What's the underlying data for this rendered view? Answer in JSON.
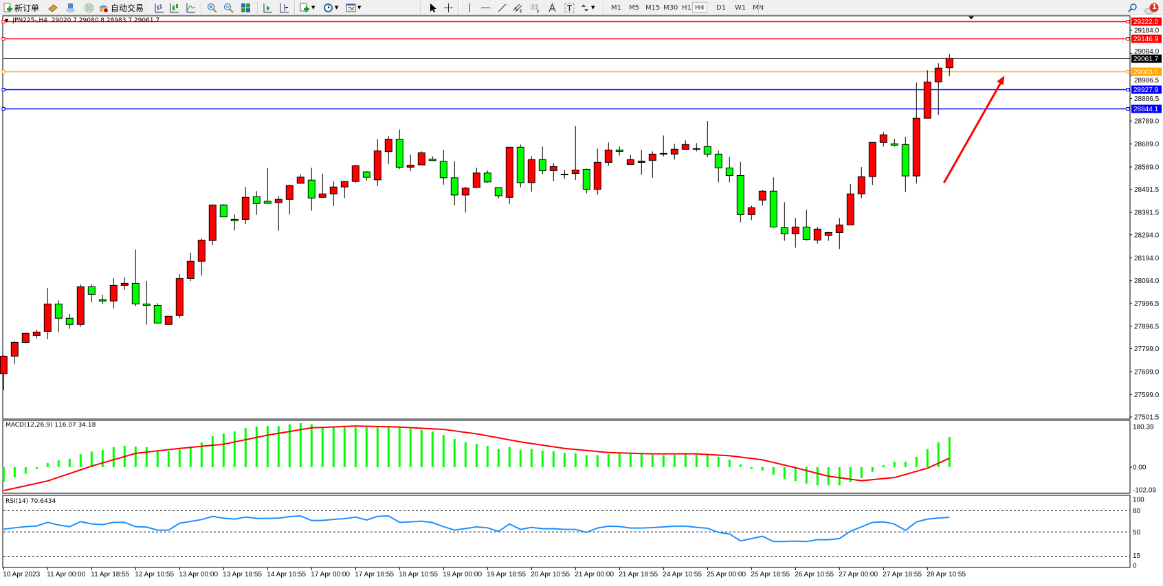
{
  "toolbar": {
    "new_order": "新订单",
    "auto_trading": "自动交易",
    "timeframes": [
      "M1",
      "M5",
      "M15",
      "M30",
      "H1",
      "H4",
      "D1",
      "W1",
      "MN"
    ],
    "active_timeframe": "H4",
    "notification_count": "1",
    "icons": [
      "new-order-icon",
      "market-watch-icon",
      "cloud-icon",
      "signal-icon",
      "auto-trading-icon",
      "bar-chart-icon",
      "candlestick-icon",
      "line-chart-icon",
      "zoom-in-icon",
      "zoom-out-icon",
      "tile-windows-icon",
      "chart-shift-icon",
      "autoscroll-icon",
      "indicators-icon",
      "periods-clock-icon",
      "templates-icon",
      "cursor-icon",
      "crosshair-icon",
      "vertical-line-icon",
      "horizontal-line-icon",
      "trendline-icon",
      "equidistant-channel-icon",
      "fibonacci-icon",
      "text-icon",
      "text-label-icon",
      "arrows-icon",
      "search-icon",
      "notification-icon"
    ]
  },
  "chart": {
    "header": "JPN225-,H4  29020.7 29080.8 28983.7 29061.7",
    "symbol": "JPN225-",
    "period": "H4",
    "colors": {
      "bull": "#ff0000",
      "bear": "#00ff00",
      "outline": "#000000",
      "macd_hist": "#00ff00",
      "signal": "#ff0000",
      "rsi": "#1e90ff"
    },
    "price_ticks": [
      "29184.0",
      "29084.0",
      "28986.5",
      "28886.5",
      "28789.0",
      "28689.0",
      "28589.0",
      "28491.5",
      "28391.5",
      "28294.0",
      "28194.0",
      "28094.0",
      "27996.5",
      "27896.5",
      "27799.0",
      "27699.0",
      "27599.0",
      "27501.5"
    ],
    "levels": [
      {
        "price": "29222.0",
        "color": "#ff0000"
      },
      {
        "price": "29146.9",
        "color": "#ff0000"
      },
      {
        "price": "29061.7",
        "color": "#000000"
      },
      {
        "price": "29003.6",
        "color": "#ffa500"
      },
      {
        "price": "28927.9",
        "color": "#0000ff"
      },
      {
        "price": "28844.1",
        "color": "#0000ff"
      }
    ],
    "arrow": {
      "color": "#ff0000",
      "from_bar": 85.5,
      "from_price": 28520,
      "to_bar": 91,
      "to_price": 28986.5
    },
    "time_labels": [
      "10 Apr 2023",
      "11 Apr 00:00",
      "11 Apr 18:55",
      "12 Apr 10:55",
      "13 Apr 00:00",
      "13 Apr 18:55",
      "14 Apr 10:55",
      "17 Apr 00:00",
      "17 Apr 18:55",
      "18 Apr 10:55",
      "19 Apr 00:00",
      "19 Apr 18:55",
      "20 Apr 10:55",
      "21 Apr 00:00",
      "21 Apr 18:55",
      "24 Apr 10:55",
      "25 Apr 00:00",
      "25 Apr 18:55",
      "26 Apr 10:55",
      "27 Apr 00:00",
      "27 Apr 18:55",
      "28 Apr 10:55"
    ]
  },
  "chart_data": {
    "type": "candlestick",
    "ohlc_fields": [
      "open",
      "high",
      "low",
      "close"
    ],
    "ylim": [
      27501.5,
      29222.0
    ],
    "candles": [
      [
        27690,
        27770,
        27618,
        27766
      ],
      [
        27766,
        27831,
        27731,
        27826
      ],
      [
        27826,
        27868,
        27822,
        27865
      ],
      [
        27856,
        27881,
        27843,
        27871
      ],
      [
        27874,
        28063,
        27840,
        27993
      ],
      [
        27993,
        28009,
        27870,
        27931
      ],
      [
        27931,
        27950,
        27885,
        27904
      ],
      [
        27904,
        28078,
        27894,
        28068
      ],
      [
        28068,
        28078,
        28000,
        28035
      ],
      [
        28012,
        28033,
        27992,
        28006
      ],
      [
        28006,
        28105,
        27974,
        28074
      ],
      [
        28074,
        28110,
        28055,
        28083
      ],
      [
        28083,
        28230,
        27983,
        27993
      ],
      [
        27993,
        28093,
        27903,
        27987
      ],
      [
        27987,
        27996,
        27910,
        27910
      ],
      [
        27904,
        27940,
        27904,
        27940
      ],
      [
        27943,
        28123,
        27932,
        28104
      ],
      [
        28104,
        28216,
        28093,
        28179
      ],
      [
        28179,
        28278,
        28116,
        28271
      ],
      [
        28269,
        28424,
        28248,
        28424
      ],
      [
        28424,
        28427,
        28372,
        28372
      ],
      [
        28361,
        28383,
        28313,
        28355
      ],
      [
        28361,
        28502,
        28341,
        28457
      ],
      [
        28460,
        28484,
        28381,
        28430
      ],
      [
        28440,
        28585,
        28428,
        28431
      ],
      [
        28434,
        28463,
        28312,
        28448
      ],
      [
        28448,
        28512,
        28382,
        28509
      ],
      [
        28518,
        28557,
        28518,
        28545
      ],
      [
        28532,
        28586,
        28399,
        28454
      ],
      [
        28457,
        28560,
        28454,
        28472
      ],
      [
        28472,
        28526,
        28419,
        28502
      ],
      [
        28502,
        28528,
        28454,
        28526
      ],
      [
        28526,
        28598,
        28521,
        28595
      ],
      [
        28568,
        28571,
        28530,
        28544
      ],
      [
        28533,
        28710,
        28506,
        28659
      ],
      [
        28656,
        28723,
        28601,
        28710
      ],
      [
        28710,
        28752,
        28580,
        28588
      ],
      [
        28588,
        28643,
        28571,
        28597
      ],
      [
        28598,
        28657,
        28598,
        28651
      ],
      [
        28623,
        28636,
        28617,
        28617
      ],
      [
        28614,
        28664,
        28512,
        28542
      ],
      [
        28542,
        28614,
        28422,
        28467
      ],
      [
        28467,
        28503,
        28391,
        28497
      ],
      [
        28500,
        28586,
        28497,
        28563
      ],
      [
        28563,
        28574,
        28521,
        28524
      ],
      [
        28500,
        28500,
        28452,
        28464
      ],
      [
        28457,
        28675,
        28429,
        28675
      ],
      [
        28675,
        28687,
        28500,
        28521
      ],
      [
        28521,
        28636,
        28482,
        28621
      ],
      [
        28621,
        28678,
        28558,
        28573
      ],
      [
        28573,
        28606,
        28527,
        28591
      ],
      [
        28555,
        28576,
        28537,
        28558
      ],
      [
        28561,
        28767,
        28533,
        28576
      ],
      [
        28579,
        28582,
        28474,
        28492
      ],
      [
        28492,
        28669,
        28468,
        28609
      ],
      [
        28609,
        28696,
        28594,
        28663
      ],
      [
        28663,
        28678,
        28639,
        28657
      ],
      [
        28600,
        28642,
        28600,
        28621
      ],
      [
        28609,
        28664,
        28555,
        28615
      ],
      [
        28618,
        28657,
        28542,
        28645
      ],
      [
        28645,
        28726,
        28635,
        28648
      ],
      [
        28645,
        28690,
        28621,
        28666
      ],
      [
        28666,
        28705,
        28666,
        28687
      ],
      [
        28669,
        28693,
        28657,
        28669
      ],
      [
        28678,
        28789,
        28632,
        28645
      ],
      [
        28645,
        28660,
        28522,
        28585
      ],
      [
        28585,
        28633,
        28522,
        28552
      ],
      [
        28552,
        28612,
        28348,
        28382
      ],
      [
        28382,
        28421,
        28358,
        28412
      ],
      [
        28445,
        28490,
        28421,
        28484
      ],
      [
        28484,
        28544,
        28325,
        28328
      ],
      [
        28325,
        28436,
        28268,
        28298
      ],
      [
        28298,
        28367,
        28238,
        28328
      ],
      [
        28328,
        28403,
        28268,
        28274
      ],
      [
        28271,
        28328,
        28256,
        28319
      ],
      [
        28292,
        28307,
        28268,
        28304
      ],
      [
        28304,
        28367,
        28232,
        28337
      ],
      [
        28337,
        28514,
        28337,
        28472
      ],
      [
        28472,
        28589,
        28454,
        28547
      ],
      [
        28547,
        28696,
        28511,
        28696
      ],
      [
        28696,
        28741,
        28678,
        28729
      ],
      [
        28690,
        28711,
        28678,
        28684
      ],
      [
        28687,
        28720,
        28481,
        28550
      ],
      [
        28550,
        28956,
        28517,
        28801
      ],
      [
        28801,
        29010,
        28801,
        28959
      ],
      [
        28959,
        29040,
        28816,
        29019
      ],
      [
        29020.7,
        29080.8,
        28983.7,
        29061.7
      ]
    ],
    "macd": {
      "label": "MACD(12,26,9) 116.07 34.18",
      "ticks": [
        "180.39",
        "0.00",
        "-102.09"
      ],
      "ylim": [
        -102.09,
        180.39
      ],
      "histogram": [
        -57,
        -40,
        -25,
        -7,
        16,
        26,
        32,
        50,
        60,
        66,
        77,
        82,
        79,
        77,
        65,
        61,
        68,
        79,
        95,
        120,
        129,
        137,
        150,
        156,
        158,
        158,
        165,
        169,
        165,
        153,
        153,
        153,
        153,
        153,
        153,
        158,
        153,
        148,
        143,
        137,
        124,
        108,
        95,
        90,
        82,
        70,
        77,
        66,
        70,
        64,
        61,
        55,
        53,
        46,
        46,
        50,
        53,
        50,
        50,
        48,
        46,
        48,
        50,
        48,
        48,
        40,
        29,
        11,
        -7,
        -13,
        -29,
        -45,
        -53,
        -63,
        -70,
        -70,
        -70,
        -57,
        -42,
        -18,
        8,
        21,
        21,
        40,
        70,
        95,
        116.07
      ],
      "signal_points": [
        [
          0,
          -90
        ],
        [
          4,
          -53
        ],
        [
          8,
          4
        ],
        [
          12,
          53
        ],
        [
          16,
          72
        ],
        [
          20,
          88
        ],
        [
          24,
          123
        ],
        [
          28,
          151
        ],
        [
          32,
          158
        ],
        [
          36,
          154
        ],
        [
          40,
          145
        ],
        [
          43,
          128
        ],
        [
          47,
          97
        ],
        [
          51,
          72
        ],
        [
          55,
          56
        ],
        [
          59,
          51
        ],
        [
          63,
          51
        ],
        [
          66,
          44
        ],
        [
          69,
          28
        ],
        [
          72,
          -2
        ],
        [
          75,
          -35
        ],
        [
          78,
          -52
        ],
        [
          81,
          -40
        ],
        [
          84,
          -4
        ],
        [
          86,
          34.18
        ]
      ]
    },
    "rsi": {
      "label": "RSI(14) 70.6434",
      "ticks": [
        "100",
        "80",
        "50",
        "15",
        "0"
      ],
      "levels": [
        80,
        50,
        15
      ],
      "ylim": [
        0,
        100
      ],
      "values": [
        53.9,
        55.8,
        57.4,
        58.4,
        63.5,
        59.7,
        57.4,
        64.5,
        61.3,
        60.3,
        63.5,
        63.5,
        57.4,
        56.8,
        52.6,
        52.6,
        62.3,
        64.8,
        67.4,
        71.9,
        69.4,
        68.1,
        71,
        69,
        69,
        69.4,
        71.6,
        72.6,
        66.1,
        66.1,
        67.7,
        68.7,
        71,
        66.8,
        71.9,
        72.6,
        63.5,
        64.2,
        65.2,
        63.2,
        57.4,
        52.6,
        54.8,
        57.1,
        55.8,
        50.6,
        61.3,
        53.5,
        56.5,
        54.5,
        54.5,
        53.5,
        53.5,
        49.4,
        55.5,
        58.1,
        57.7,
        55.5,
        55.5,
        56.1,
        57.1,
        58.1,
        58.1,
        56.5,
        55.2,
        49.4,
        47.1,
        37.4,
        40.6,
        43.9,
        36.5,
        36.5,
        37.1,
        36.5,
        39,
        39,
        40.6,
        51,
        57.1,
        63.5,
        64.2,
        61,
        52.3,
        64.2,
        68.1,
        69.7,
        70.6434
      ]
    }
  }
}
